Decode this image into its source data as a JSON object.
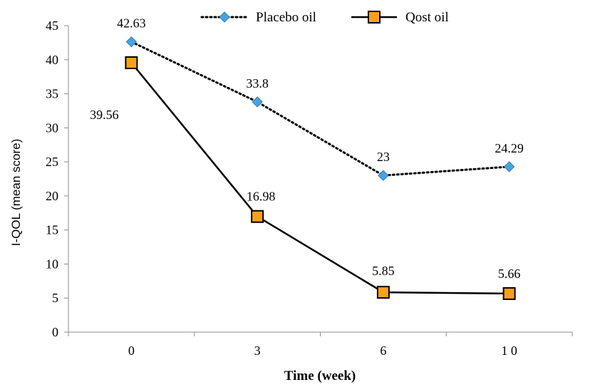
{
  "chart_data": {
    "type": "line",
    "title": "",
    "xlabel": "Time (week)",
    "ylabel": "I-QOL (mean score)",
    "ylim": [
      0,
      45
    ],
    "yticks": [
      0,
      5,
      10,
      15,
      20,
      25,
      30,
      35,
      40,
      45
    ],
    "categories": [
      "0",
      "3",
      "6",
      "1 0"
    ],
    "grid": false,
    "legend_position": "top",
    "series": [
      {
        "name": "Placebo oil",
        "values": [
          42.63,
          33.8,
          23,
          24.29
        ],
        "labels": [
          "42.63",
          "33.8",
          "23",
          "24.29"
        ],
        "color": "#000000",
        "marker_color": "#4aa3df",
        "line_style": "dotted",
        "marker": "diamond"
      },
      {
        "name": "Qost oil",
        "values": [
          39.56,
          16.98,
          5.85,
          5.66
        ],
        "labels": [
          "39.56",
          "16.98",
          "5.85",
          "5.66"
        ],
        "color": "#000000",
        "marker_color": "#f7a11a",
        "line_style": "solid",
        "marker": "square"
      }
    ]
  }
}
